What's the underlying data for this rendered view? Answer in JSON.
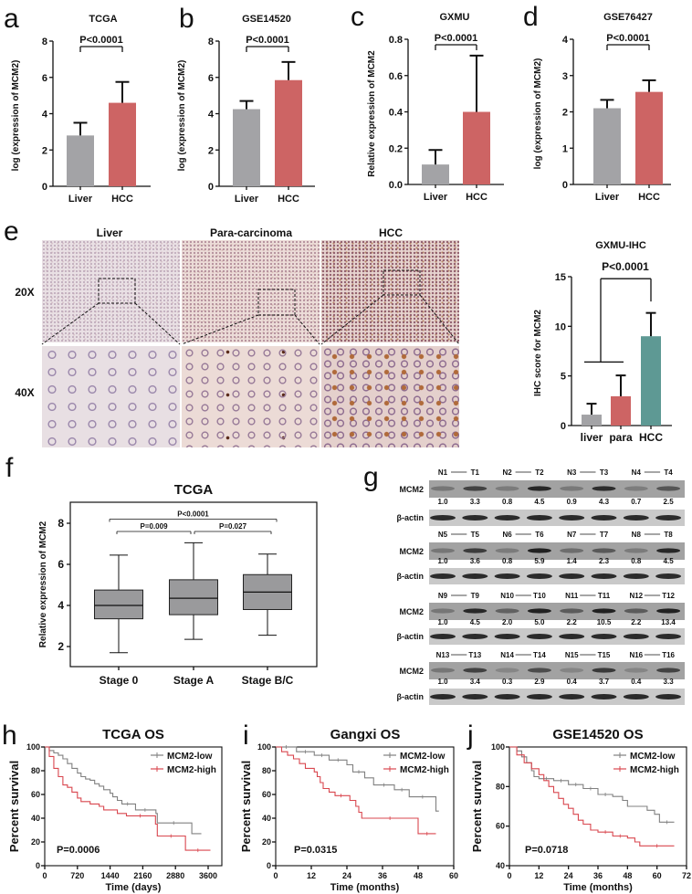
{
  "panel_labels": {
    "a": "a",
    "b": "b",
    "c": "c",
    "d": "d",
    "e": "e",
    "f": "f",
    "g": "g",
    "h": "h",
    "i": "i",
    "j": "j"
  },
  "colors": {
    "normal": "#a3a3a6",
    "tumor": "#cd6464",
    "hcc_teal": "#5e9994",
    "box_fill": "#9a9a9c",
    "km_low": "#808080",
    "km_high": "#d9474f"
  },
  "histology": {
    "columns": [
      "Liver",
      "Para-carcinoma",
      "HCC"
    ],
    "rows": [
      "20X",
      "40X"
    ]
  },
  "western_blot": {
    "target_label": "MCM2",
    "loading_label": "β-actin",
    "blocks": [
      {
        "lanes": [
          "N1",
          "T1",
          "N2",
          "T2",
          "N3",
          "T3",
          "N4",
          "T4"
        ],
        "values": [
          "1.0",
          "3.3",
          "0.8",
          "4.5",
          "0.9",
          "4.3",
          "0.7",
          "2.5"
        ]
      },
      {
        "lanes": [
          "N5",
          "T5",
          "N6",
          "T6",
          "N7",
          "T7",
          "N8",
          "T8"
        ],
        "values": [
          "1.0",
          "3.6",
          "0.8",
          "5.9",
          "1.4",
          "2.3",
          "0.8",
          "4.5"
        ]
      },
      {
        "lanes": [
          "N9",
          "T9",
          "N10",
          "T10",
          "N11",
          "T11",
          "N12",
          "T12"
        ],
        "values": [
          "1.0",
          "4.5",
          "2.0",
          "5.0",
          "2.2",
          "10.5",
          "2.2",
          "13.4"
        ]
      },
      {
        "lanes": [
          "N13",
          "T13",
          "N14",
          "T14",
          "N15",
          "T15",
          "N16",
          "T16"
        ],
        "values": [
          "1.0",
          "3.4",
          "0.3",
          "2.9",
          "0.4",
          "3.7",
          "0.4",
          "3.3"
        ]
      }
    ]
  },
  "chart_data": [
    {
      "panel": "a",
      "type": "bar",
      "title": "TCGA",
      "xlabel": "",
      "ylabel": "log (expression of MCM2)",
      "categories": [
        "Liver",
        "HCC"
      ],
      "values": [
        2.8,
        4.6
      ],
      "error_upper": [
        3.5,
        5.75
      ],
      "ylim": [
        0,
        8
      ],
      "yticks": [
        "0",
        "2",
        "4",
        "6",
        "8"
      ],
      "significance": "P<0.0001"
    },
    {
      "panel": "b",
      "type": "bar",
      "title": "GSE14520",
      "xlabel": "",
      "ylabel": "log (expression of MCM2)",
      "categories": [
        "Liver",
        "HCC"
      ],
      "values": [
        4.25,
        5.85
      ],
      "error_upper": [
        4.7,
        6.85
      ],
      "ylim": [
        0,
        8
      ],
      "yticks": [
        "0",
        "2",
        "4",
        "6",
        "8"
      ],
      "significance": "P<0.0001"
    },
    {
      "panel": "c",
      "type": "bar",
      "title": "GXMU",
      "xlabel": "",
      "ylabel": "Relative expression of MCM2",
      "categories": [
        "Liver",
        "HCC"
      ],
      "values": [
        0.11,
        0.4
      ],
      "error_upper": [
        0.19,
        0.71
      ],
      "ylim": [
        0,
        0.8
      ],
      "yticks": [
        "0.0",
        "0.2",
        "0.4",
        "0.6",
        "0.8"
      ],
      "significance": "P<0.0001"
    },
    {
      "panel": "d",
      "type": "bar",
      "title": "GSE76427",
      "xlabel": "",
      "ylabel": "log (expression of MCM2)",
      "categories": [
        "Liver",
        "HCC"
      ],
      "values": [
        2.1,
        2.55
      ],
      "error_upper": [
        2.33,
        2.87
      ],
      "ylim": [
        0,
        4
      ],
      "yticks": [
        "0",
        "1",
        "2",
        "3",
        "4"
      ],
      "significance": "P<0.0001"
    },
    {
      "panel": "e",
      "type": "bar",
      "title": "GXMU-IHC",
      "xlabel": "",
      "ylabel": "IHC  score for MCM2",
      "categories": [
        "liver",
        "para",
        "HCC"
      ],
      "values": [
        1.1,
        2.95,
        9.0
      ],
      "error_upper": [
        2.2,
        5.05,
        11.35
      ],
      "ylim": [
        0,
        15
      ],
      "yticks": [
        "0",
        "5",
        "10",
        "15"
      ],
      "significance": "P<0.0001"
    },
    {
      "panel": "f",
      "type": "box",
      "title": "TCGA",
      "xlabel": "",
      "ylabel": "Relative expression of MCM2",
      "categories": [
        "Stage 0",
        "Stage A",
        "Stage B/C"
      ],
      "boxes": [
        {
          "min": 1.7,
          "q1": 3.35,
          "median": 4.0,
          "q3": 4.75,
          "max": 6.45
        },
        {
          "min": 2.35,
          "q1": 3.55,
          "median": 4.35,
          "q3": 5.25,
          "max": 7.05
        },
        {
          "min": 2.55,
          "q1": 3.8,
          "median": 4.65,
          "q3": 5.5,
          "max": 6.5
        }
      ],
      "ylim": [
        1,
        9
      ],
      "yticks": [
        "2",
        "4",
        "6",
        "8"
      ],
      "comparisons": [
        {
          "groups": [
            "Stage 0",
            "Stage B/C"
          ],
          "label": "P<0.0001"
        },
        {
          "groups": [
            "Stage 0",
            "Stage A"
          ],
          "label": "P=0.009"
        },
        {
          "groups": [
            "Stage A",
            "Stage B/C"
          ],
          "label": "P=0.027"
        }
      ]
    },
    {
      "panel": "h",
      "type": "line",
      "subtype": "kaplan-meier",
      "title": "TCGA OS",
      "xlabel": "Time (days)",
      "ylabel": "Percent survival",
      "xlim": [
        0,
        3900
      ],
      "ylim": [
        0,
        100
      ],
      "xticks": [
        "0",
        "720",
        "1440",
        "2160",
        "2880",
        "3600"
      ],
      "yticks": [
        "0",
        "20",
        "40",
        "60",
        "80",
        "100"
      ],
      "pvalue": "P=0.0006",
      "legend": "top-right",
      "series": [
        {
          "name": "MCM2-low",
          "points": [
            [
              0,
              100
            ],
            [
              100,
              97
            ],
            [
              200,
              95
            ],
            [
              300,
              93
            ],
            [
              400,
              90
            ],
            [
              500,
              86
            ],
            [
              600,
              82
            ],
            [
              720,
              78
            ],
            [
              800,
              75
            ],
            [
              900,
              73
            ],
            [
              1000,
              72
            ],
            [
              1100,
              69
            ],
            [
              1200,
              67
            ],
            [
              1300,
              64
            ],
            [
              1440,
              61
            ],
            [
              1500,
              58
            ],
            [
              1600,
              55
            ],
            [
              1700,
              52
            ],
            [
              1950,
              52
            ],
            [
              2000,
              47
            ],
            [
              2420,
              47
            ],
            [
              2450,
              44
            ],
            [
              2480,
              36
            ],
            [
              3200,
              36
            ],
            [
              3240,
              27
            ],
            [
              3450,
              27
            ]
          ]
        },
        {
          "name": "MCM2-high",
          "points": [
            [
              0,
              100
            ],
            [
              100,
              92
            ],
            [
              200,
              82
            ],
            [
              300,
              75
            ],
            [
              400,
              68
            ],
            [
              500,
              66
            ],
            [
              600,
              62
            ],
            [
              720,
              57
            ],
            [
              800,
              54
            ],
            [
              1000,
              52
            ],
            [
              1200,
              50
            ],
            [
              1300,
              47
            ],
            [
              1500,
              47
            ],
            [
              1600,
              44
            ],
            [
              1800,
              42
            ],
            [
              2400,
              42
            ],
            [
              2440,
              35
            ],
            [
              2480,
              25
            ],
            [
              3080,
              25
            ],
            [
              3100,
              13
            ],
            [
              3650,
              13
            ]
          ]
        }
      ]
    },
    {
      "panel": "i",
      "type": "line",
      "subtype": "kaplan-meier",
      "title": "Gangxi OS",
      "xlabel": "Time (months)",
      "ylabel": "Percent survival",
      "xlim": [
        0,
        60
      ],
      "ylim": [
        0,
        100
      ],
      "xticks": [
        "0",
        "12",
        "24",
        "36",
        "48",
        "60"
      ],
      "yticks": [
        "0",
        "20",
        "40",
        "60",
        "80",
        "100"
      ],
      "pvalue": "P=0.0315",
      "legend": "top-right",
      "series": [
        {
          "name": "MCM2-low",
          "points": [
            [
              0,
              100
            ],
            [
              7,
              100
            ],
            [
              7,
              96
            ],
            [
              13,
              96
            ],
            [
              13,
              93
            ],
            [
              18,
              93
            ],
            [
              18,
              89
            ],
            [
              24,
              89
            ],
            [
              24,
              85
            ],
            [
              26,
              85
            ],
            [
              26,
              79
            ],
            [
              30,
              79
            ],
            [
              30,
              74
            ],
            [
              33,
              74
            ],
            [
              33,
              68
            ],
            [
              40,
              68
            ],
            [
              40,
              64
            ],
            [
              45,
              64
            ],
            [
              45,
              58
            ],
            [
              54,
              58
            ],
            [
              54,
              46
            ],
            [
              55,
              46
            ]
          ]
        },
        {
          "name": "MCM2-high",
          "points": [
            [
              0,
              100
            ],
            [
              2,
              96
            ],
            [
              4,
              93
            ],
            [
              6,
              90
            ],
            [
              8,
              86
            ],
            [
              10,
              82
            ],
            [
              13,
              79
            ],
            [
              14,
              75
            ],
            [
              15,
              70
            ],
            [
              16,
              65
            ],
            [
              18,
              62
            ],
            [
              20,
              59
            ],
            [
              24,
              59
            ],
            [
              25,
              55
            ],
            [
              27,
              50
            ],
            [
              28,
              45
            ],
            [
              29,
              40
            ],
            [
              48,
              40
            ],
            [
              48,
              27
            ],
            [
              54,
              27
            ]
          ]
        }
      ]
    },
    {
      "panel": "j",
      "type": "line",
      "subtype": "kaplan-meier",
      "title": "GSE14520 OS",
      "xlabel": "Time (months)",
      "ylabel": "Percent survival",
      "xlim": [
        0,
        72
      ],
      "ylim": [
        40,
        100
      ],
      "xticks": [
        "0",
        "12",
        "24",
        "36",
        "48",
        "60",
        "72"
      ],
      "yticks": [
        "40",
        "60",
        "80",
        "100"
      ],
      "pvalue": "P=0.0718",
      "legend": "top-right",
      "series": [
        {
          "name": "MCM2-low",
          "points": [
            [
              0,
              100
            ],
            [
              3,
              98
            ],
            [
              5,
              95
            ],
            [
              7,
              92
            ],
            [
              9,
              88
            ],
            [
              10,
              85
            ],
            [
              12,
              84
            ],
            [
              18,
              83
            ],
            [
              24,
              81
            ],
            [
              30,
              79
            ],
            [
              36,
              76
            ],
            [
              42,
              75
            ],
            [
              46,
              73
            ],
            [
              48,
              70
            ],
            [
              52,
              70
            ],
            [
              56,
              68
            ],
            [
              59,
              66
            ],
            [
              61,
              62
            ],
            [
              67,
              62
            ]
          ]
        },
        {
          "name": "MCM2-high",
          "points": [
            [
              0,
              100
            ],
            [
              3,
              96
            ],
            [
              6,
              92
            ],
            [
              9,
              89
            ],
            [
              12,
              86
            ],
            [
              14,
              83
            ],
            [
              16,
              80
            ],
            [
              18,
              77
            ],
            [
              20,
              74
            ],
            [
              22,
              71
            ],
            [
              24,
              69
            ],
            [
              26,
              66
            ],
            [
              28,
              63
            ],
            [
              30,
              61
            ],
            [
              33,
              58
            ],
            [
              36,
              57
            ],
            [
              42,
              55
            ],
            [
              48,
              54
            ],
            [
              51,
              52
            ],
            [
              53,
              50
            ],
            [
              67,
              50
            ]
          ]
        }
      ]
    }
  ]
}
